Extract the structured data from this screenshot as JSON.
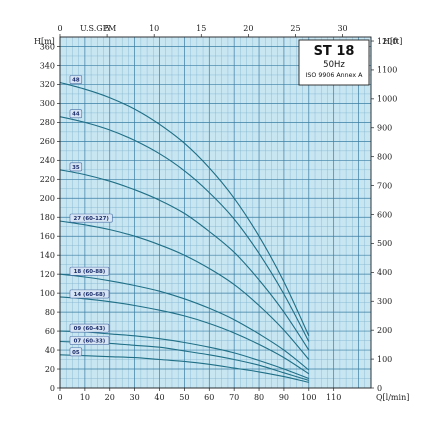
{
  "chart_data": {
    "type": "line",
    "title": "ST 18",
    "subtitle": "50Hz",
    "standard": "ISO 9906 Annex A",
    "x_bottom": {
      "label": "Q[l/min]",
      "min": 0,
      "max": 125,
      "ticks": [
        0,
        10,
        20,
        30,
        40,
        50,
        60,
        70,
        80,
        90,
        100,
        110
      ]
    },
    "x_top": {
      "label": "U.S.GPM",
      "min": 0,
      "max": 33.02,
      "ticks": [
        0,
        5,
        10,
        15,
        20,
        25,
        30
      ]
    },
    "y_left": {
      "label": "H[m]",
      "min": 0,
      "max": 370,
      "ticks": [
        0,
        20,
        40,
        60,
        80,
        100,
        120,
        140,
        160,
        180,
        200,
        220,
        240,
        260,
        280,
        300,
        320,
        340,
        360
      ]
    },
    "y_right": {
      "label": "H[ft]",
      "min": 0,
      "max": 1213.9,
      "ticks": [
        0,
        100,
        200,
        300,
        400,
        500,
        600,
        700,
        800,
        900,
        1000,
        1100,
        1200
      ]
    },
    "grid": true,
    "colors": {
      "curve": "#1f6f86",
      "plot_bg": "#c8e6f2",
      "grid_minor": "#7fb3cd",
      "grid_major": "#3a7ea3",
      "label_bg": "#d7e4f3",
      "label_border": "#4a6fa5"
    },
    "x": [
      0,
      10,
      20,
      30,
      40,
      50,
      60,
      70,
      80,
      90,
      100
    ],
    "series": [
      {
        "name": "48",
        "label_at": [
          4,
          325
        ],
        "values": [
          322,
          315,
          306,
          294,
          278,
          258,
          232,
          200,
          160,
          112,
          55
        ]
      },
      {
        "name": "44",
        "label_at": [
          4,
          289
        ],
        "values": [
          286,
          280,
          272,
          261,
          247,
          229,
          206,
          178,
          142,
          99,
          49
        ]
      },
      {
        "name": "35",
        "label_at": [
          4,
          233
        ],
        "values": [
          230,
          225,
          218,
          209,
          198,
          184,
          165,
          143,
          114,
          80,
          40
        ]
      },
      {
        "name": "27 (60-127)",
        "label_at": [
          4,
          179
        ],
        "values": [
          176,
          172,
          167,
          160,
          151,
          140,
          126,
          109,
          87,
          61,
          30
        ]
      },
      {
        "name": "18 (60-88)",
        "label_at": [
          4,
          123
        ],
        "values": [
          120,
          117,
          113,
          108,
          102,
          94,
          84,
          72,
          57,
          40,
          19
        ]
      },
      {
        "name": "14 (60-68)",
        "label_at": [
          4,
          99
        ],
        "values": [
          96,
          94,
          91,
          87,
          82,
          76,
          68,
          58,
          46,
          32,
          15
        ]
      },
      {
        "name": "09 (60-43)",
        "label_at": [
          4,
          63
        ],
        "values": [
          60,
          59,
          57,
          55,
          52,
          48,
          43,
          37,
          29,
          20,
          10
        ]
      },
      {
        "name": "07 (60-33)",
        "label_at": [
          4,
          50
        ],
        "values": [
          49,
          48,
          47,
          45,
          43,
          39,
          35,
          30,
          24,
          16,
          8
        ]
      },
      {
        "name": "05",
        "label_at": [
          4,
          38
        ],
        "values": [
          35,
          34,
          33,
          32,
          30,
          28,
          25,
          21,
          17,
          12,
          6
        ]
      }
    ]
  }
}
